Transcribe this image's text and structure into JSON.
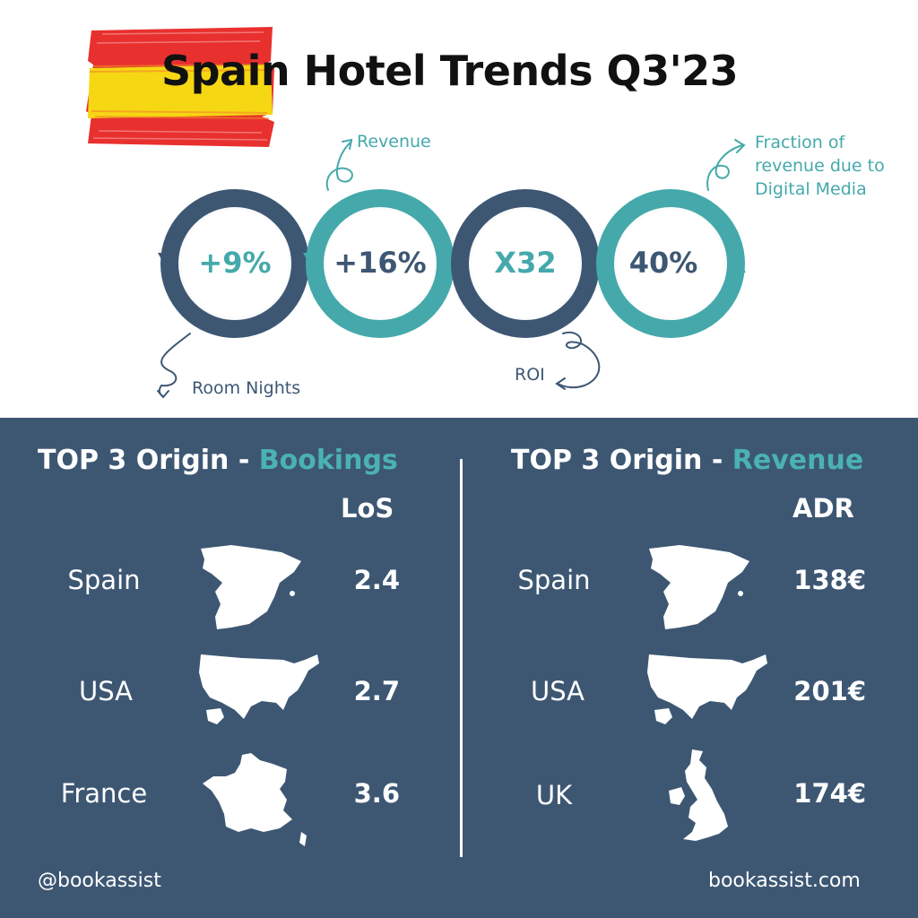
{
  "header": {
    "title": "Spain Hotel Trends Q3'23"
  },
  "flag": {
    "icon": "spain-flag-icon",
    "colors": [
      "#e8302e",
      "#f6d713"
    ]
  },
  "metrics": [
    {
      "value": "+9%",
      "label": "Room Nights",
      "ring_color": "#3d5773",
      "value_color": "#45a9ab"
    },
    {
      "value": "+16%",
      "label": "Revenue",
      "ring_color": "#45a9ab",
      "value_color": "#3d5773"
    },
    {
      "value": "X32",
      "label": "ROI",
      "ring_color": "#3d5773",
      "value_color": "#45a9ab"
    },
    {
      "value": "40%",
      "label_lines": [
        "Fraction of",
        "revenue due to",
        "Digital Media"
      ],
      "ring_color": "#45a9ab",
      "value_color": "#3d5773"
    }
  ],
  "bookings": {
    "title_prefix": "TOP 3 Origin - ",
    "title_highlight": "Bookings",
    "column": "LoS",
    "rows": [
      {
        "country": "Spain",
        "value": "2.4",
        "map_icon": "spain-map-icon"
      },
      {
        "country": "USA",
        "value": "2.7",
        "map_icon": "usa-map-icon"
      },
      {
        "country": "France",
        "value": "3.6",
        "map_icon": "france-map-icon"
      }
    ]
  },
  "revenue": {
    "title_prefix": "TOP 3 Origin - ",
    "title_highlight": "Revenue",
    "column": "ADR",
    "rows": [
      {
        "country": "Spain",
        "value": "138€",
        "map_icon": "spain-map-icon"
      },
      {
        "country": "USA",
        "value": "201€",
        "map_icon": "usa-map-icon"
      },
      {
        "country": "UK",
        "value": "174€",
        "map_icon": "uk-map-icon"
      }
    ]
  },
  "footer": {
    "handle": "@bookassist",
    "site": "bookassist.com"
  },
  "colors": {
    "navy": "#3d5773",
    "teal": "#45a9ab",
    "teal_light": "#4bb2b2",
    "white": "#ffffff"
  }
}
